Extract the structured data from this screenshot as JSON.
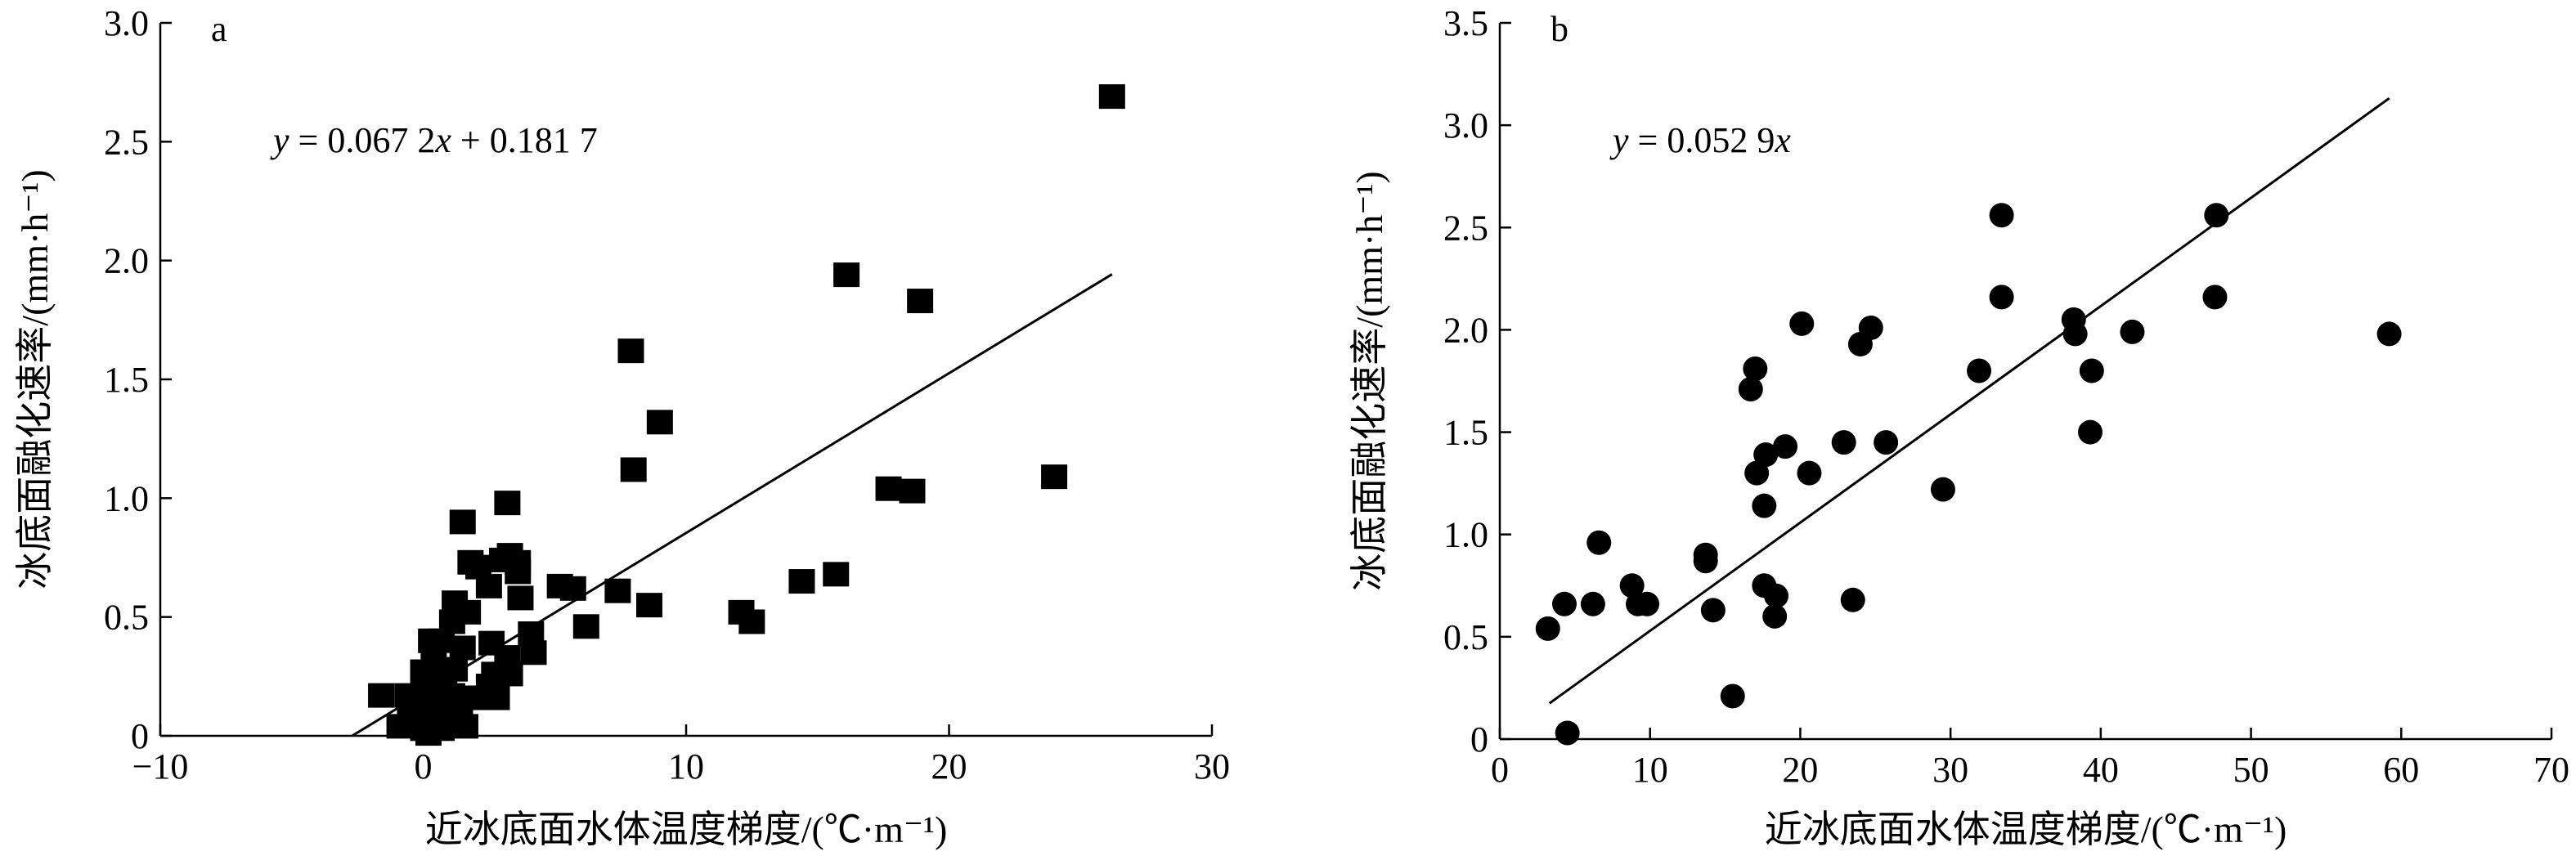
{
  "chart_data": [
    {
      "type": "scatter",
      "panel_label": "a",
      "marker": "square",
      "color": "#000000",
      "xlabel": "近冰底面水体温度梯度/(℃·m⁻¹)",
      "ylabel": "冰底面融化速率/(mm·h⁻¹)",
      "xlim": [
        -10,
        30
      ],
      "ylim": [
        0,
        3.0
      ],
      "xticks": [
        -10,
        0,
        10,
        20,
        30
      ],
      "xtick_labels": [
        "−10",
        "0",
        "10",
        "20",
        "30"
      ],
      "yticks": [
        0,
        0.5,
        1.0,
        1.5,
        2.0,
        2.5,
        3.0
      ],
      "ytick_labels": [
        "0",
        "0.5",
        "1.0",
        "1.5",
        "2.0",
        "2.5",
        "3.0"
      ],
      "equation": {
        "y": "y",
        "eq": " = 0.067 2",
        "x": "x",
        "rest": " + 0.181 7"
      },
      "fit": {
        "slope": 0.0672,
        "intercept": 0.1817,
        "x_range": [
          -2.7,
          26.2
        ]
      },
      "points": [
        [
          26.2,
          2.69
        ],
        [
          16.1,
          1.94
        ],
        [
          18.9,
          1.83
        ],
        [
          7.9,
          1.62
        ],
        [
          9.0,
          1.32
        ],
        [
          8.0,
          1.12
        ],
        [
          24.0,
          1.09
        ],
        [
          17.7,
          1.04
        ],
        [
          18.6,
          1.03
        ],
        [
          3.2,
          0.98
        ],
        [
          1.5,
          0.9
        ],
        [
          3.3,
          0.76
        ],
        [
          3.6,
          0.73
        ],
        [
          3.0,
          0.74
        ],
        [
          2.1,
          0.71
        ],
        [
          1.8,
          0.73
        ],
        [
          3.6,
          0.69
        ],
        [
          15.7,
          0.68
        ],
        [
          14.4,
          0.65
        ],
        [
          5.2,
          0.63
        ],
        [
          5.7,
          0.62
        ],
        [
          7.4,
          0.61
        ],
        [
          2.5,
          0.63
        ],
        [
          3.7,
          0.58
        ],
        [
          8.6,
          0.55
        ],
        [
          1.2,
          0.56
        ],
        [
          12.1,
          0.52
        ],
        [
          12.5,
          0.48
        ],
        [
          6.2,
          0.46
        ],
        [
          1.1,
          0.48
        ],
        [
          1.7,
          0.52
        ],
        [
          4.1,
          0.43
        ],
        [
          0.3,
          0.4
        ],
        [
          0.7,
          0.4
        ],
        [
          2.6,
          0.39
        ],
        [
          1.5,
          0.37
        ],
        [
          4.2,
          0.35
        ],
        [
          3.2,
          0.33
        ],
        [
          0.4,
          0.3
        ],
        [
          1.2,
          0.28
        ],
        [
          0.0,
          0.27
        ],
        [
          2.7,
          0.26
        ],
        [
          3.3,
          0.26
        ],
        [
          0.8,
          0.24
        ],
        [
          0.2,
          0.22
        ],
        [
          2.5,
          0.21
        ],
        [
          -1.6,
          0.17
        ],
        [
          -0.6,
          0.17
        ],
        [
          0.3,
          0.17
        ],
        [
          1.1,
          0.17
        ],
        [
          1.9,
          0.16
        ],
        [
          2.8,
          0.16
        ],
        [
          0.0,
          0.12
        ],
        [
          0.6,
          0.12
        ],
        [
          1.4,
          0.11
        ],
        [
          -0.5,
          0.09
        ],
        [
          0.3,
          0.08
        ],
        [
          0.9,
          0.07
        ],
        [
          -0.9,
          0.04
        ],
        [
          0.0,
          0.03
        ],
        [
          0.7,
          0.03
        ],
        [
          1.6,
          0.04
        ],
        [
          0.2,
          0.01
        ]
      ]
    },
    {
      "type": "scatter",
      "panel_label": "b",
      "marker": "circle",
      "color": "#000000",
      "xlabel": "近冰底面水体温度梯度/(℃·m⁻¹)",
      "ylabel": "冰底面融化速率/(mm·h⁻¹)",
      "xlim": [
        0,
        70
      ],
      "ylim": [
        0,
        3.5
      ],
      "xticks": [
        0,
        10,
        20,
        30,
        40,
        50,
        60,
        70
      ],
      "xtick_labels": [
        "0",
        "10",
        "20",
        "30",
        "40",
        "50",
        "60",
        "70"
      ],
      "yticks": [
        0,
        0.5,
        1.0,
        1.5,
        2.0,
        2.5,
        3.0,
        3.5
      ],
      "ytick_labels": [
        "0",
        "0.5",
        "1.0",
        "1.5",
        "2.0",
        "2.5",
        "3.0",
        "3.5"
      ],
      "equation": {
        "y": "y",
        "eq": " = 0.052 9",
        "x": "x",
        "rest": ""
      },
      "fit": {
        "slope": 0.0529,
        "intercept": 0,
        "x_range": [
          3.3,
          59.2
        ]
      },
      "points": [
        [
          33.4,
          2.56
        ],
        [
          47.7,
          2.56
        ],
        [
          33.4,
          2.16
        ],
        [
          47.6,
          2.16
        ],
        [
          38.2,
          2.05
        ],
        [
          20.1,
          2.03
        ],
        [
          24.7,
          2.01
        ],
        [
          38.3,
          1.98
        ],
        [
          42.1,
          1.99
        ],
        [
          59.2,
          1.98
        ],
        [
          24.0,
          1.93
        ],
        [
          17.0,
          1.81
        ],
        [
          31.9,
          1.8
        ],
        [
          39.4,
          1.8
        ],
        [
          16.7,
          1.71
        ],
        [
          22.9,
          1.45
        ],
        [
          25.7,
          1.45
        ],
        [
          19.0,
          1.43
        ],
        [
          39.3,
          1.5
        ],
        [
          17.7,
          1.39
        ],
        [
          17.1,
          1.3
        ],
        [
          20.6,
          1.3
        ],
        [
          29.5,
          1.22
        ],
        [
          17.6,
          1.14
        ],
        [
          6.6,
          0.96
        ],
        [
          13.7,
          0.9
        ],
        [
          13.7,
          0.87
        ],
        [
          8.8,
          0.75
        ],
        [
          17.6,
          0.75
        ],
        [
          18.4,
          0.7
        ],
        [
          23.5,
          0.68
        ],
        [
          4.3,
          0.66
        ],
        [
          6.2,
          0.66
        ],
        [
          9.2,
          0.66
        ],
        [
          9.8,
          0.66
        ],
        [
          14.2,
          0.63
        ],
        [
          18.3,
          0.6
        ],
        [
          3.2,
          0.54
        ],
        [
          15.5,
          0.21
        ],
        [
          4.5,
          0.03
        ]
      ]
    }
  ]
}
